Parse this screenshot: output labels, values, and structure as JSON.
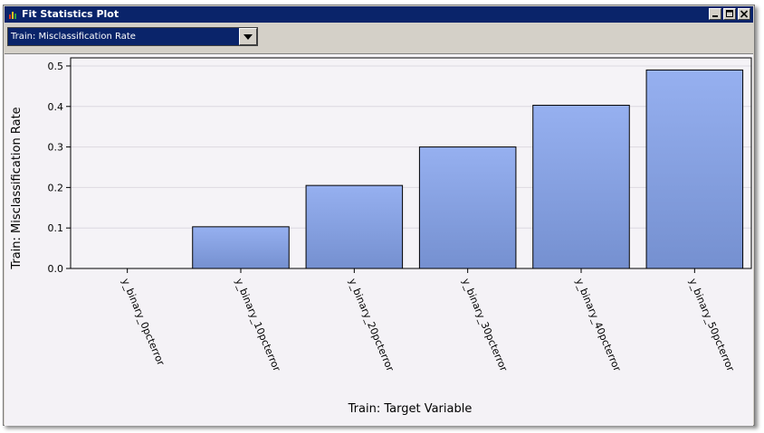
{
  "window": {
    "title": "Fit Statistics Plot",
    "controls": {
      "minimize_icon": "minimize-icon",
      "maximize_icon": "maximize-icon",
      "close_icon": "close-icon"
    }
  },
  "toolbar": {
    "statistic_select": {
      "value": "Train: Misclassification Rate"
    }
  },
  "colors": {
    "title_bar": "#0a246a",
    "bar_fill_top": "#96b0f0",
    "bar_fill_bottom": "#7590d0",
    "plot_background": "#f4f2f6"
  },
  "chart_data": {
    "type": "bar",
    "xlabel": "Train: Target Variable",
    "ylabel": "Train: Misclassification Rate",
    "categories": [
      "y_binary_0pcterror",
      "y_binary_10pcterror",
      "y_binary_20pcterror",
      "y_binary_30pcterror",
      "y_binary_40pcterror",
      "y_binary_50pcterror"
    ],
    "values": [
      0.0,
      0.103,
      0.205,
      0.3,
      0.403,
      0.49
    ],
    "ylim": [
      0,
      0.52
    ],
    "yticks": [
      0.0,
      0.1,
      0.2,
      0.3,
      0.4,
      0.5
    ],
    "ytick_labels": [
      "0.0",
      "0.1",
      "0.2",
      "0.3",
      "0.4",
      "0.5"
    ],
    "grid": true,
    "legend": "none"
  }
}
